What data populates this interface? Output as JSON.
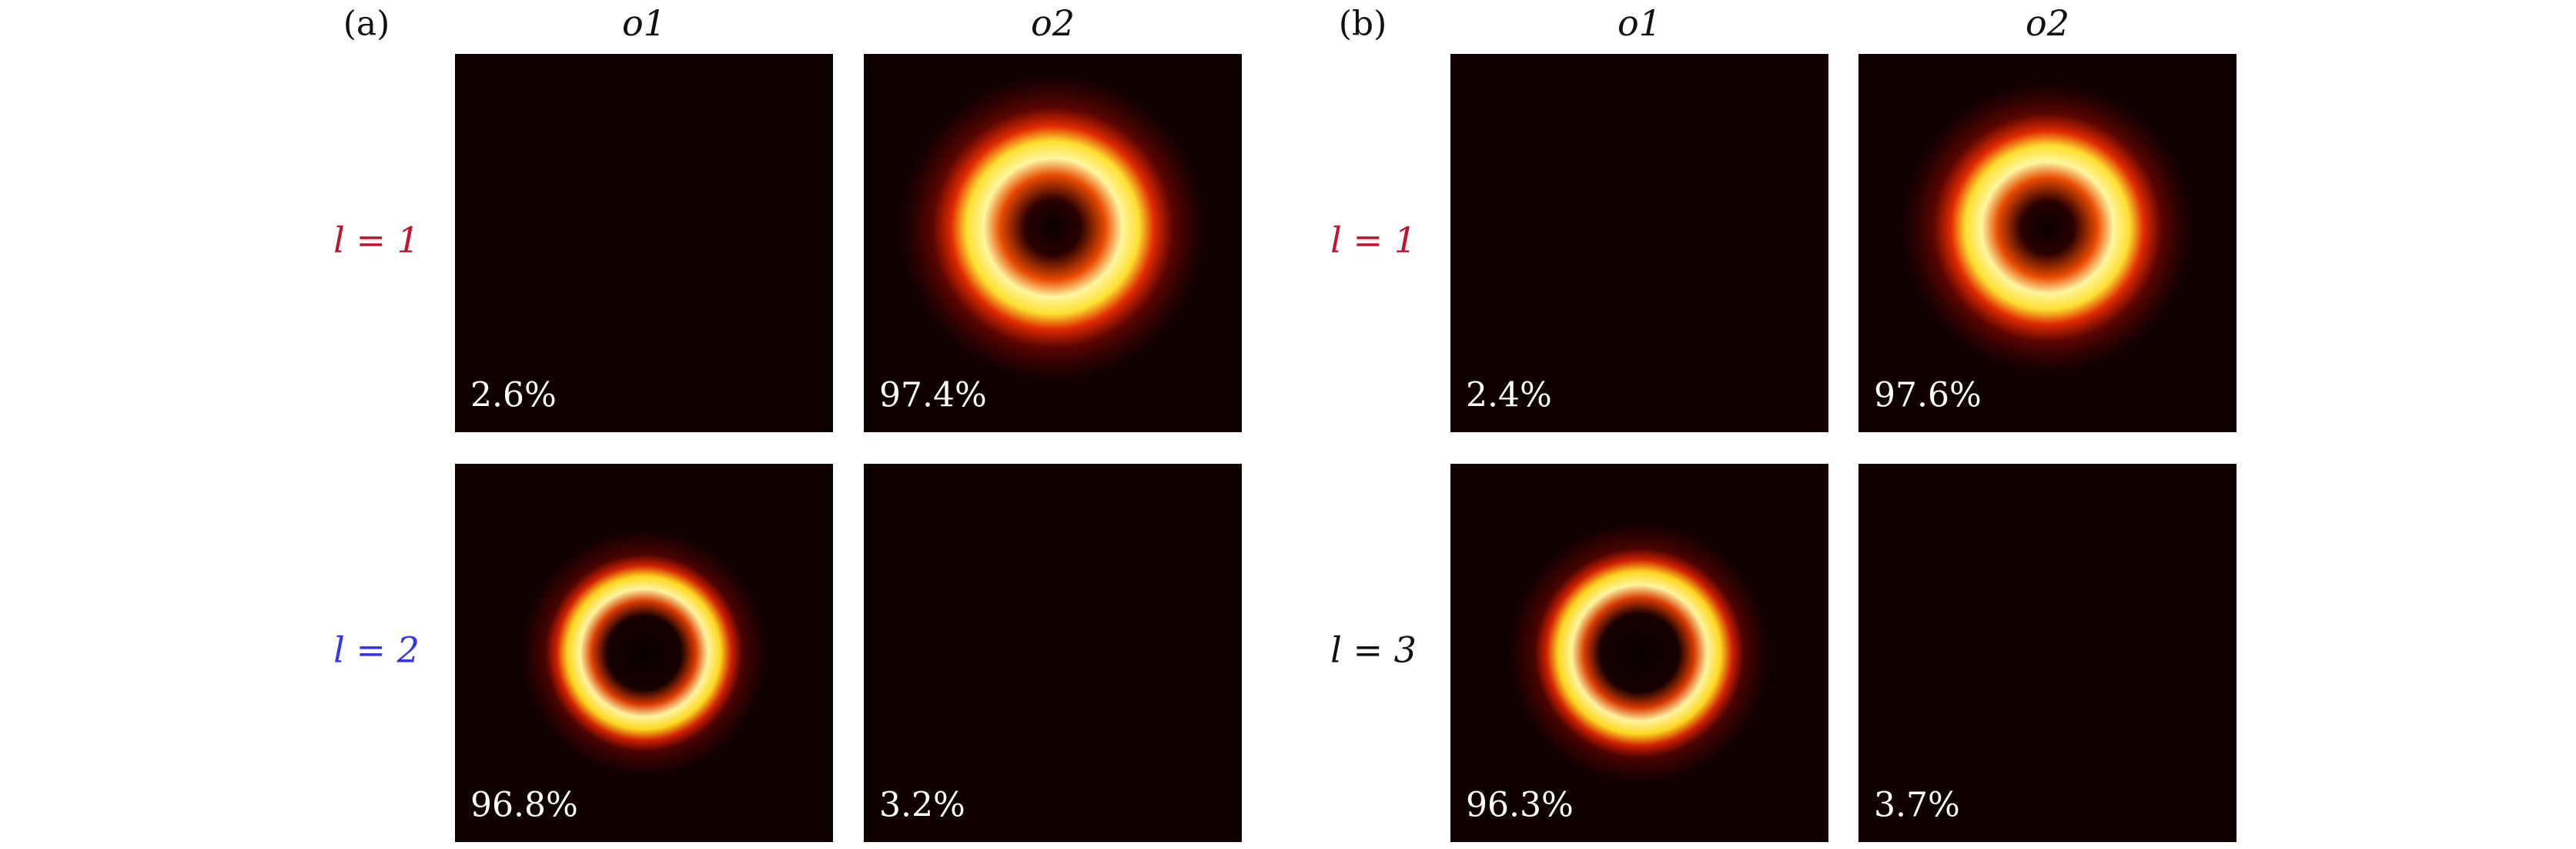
{
  "panels": [
    {
      "label": "(a)",
      "columns": [
        "o1",
        "o2"
      ],
      "rows": [
        {
          "label": "l = 1",
          "color": "#c0152f",
          "cells": [
            "2.6%",
            "97.4%"
          ]
        },
        {
          "label": "l = 2",
          "color": "#3535e8",
          "cells": [
            "96.8%",
            "3.2%"
          ]
        }
      ]
    },
    {
      "label": "(b)",
      "columns": [
        "o1",
        "o2"
      ],
      "rows": [
        {
          "label": "l = 1",
          "color": "#c0152f",
          "cells": [
            "2.4%",
            "97.6%"
          ]
        },
        {
          "label": "l = 3",
          "color": "#111111",
          "cells": [
            "96.3%",
            "3.7%"
          ]
        }
      ]
    }
  ]
}
